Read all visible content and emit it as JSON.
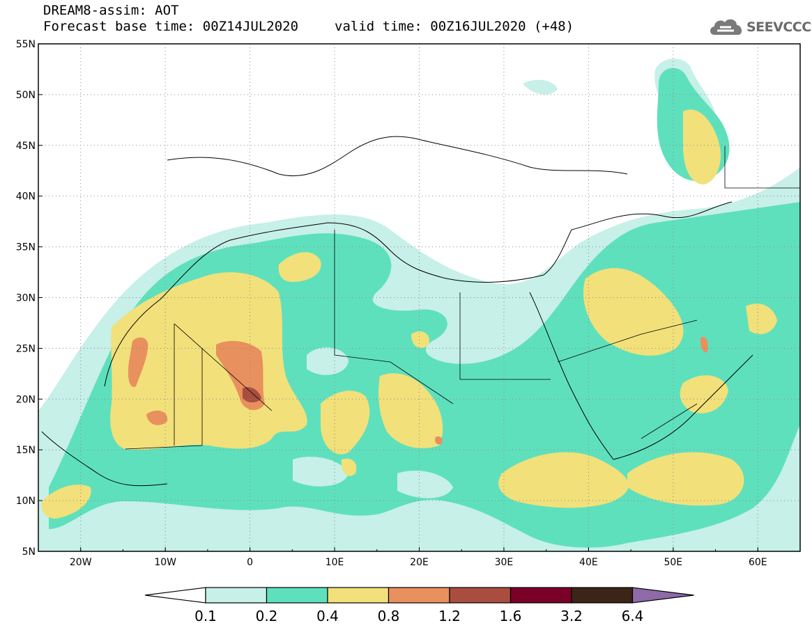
{
  "header": {
    "line1": "DREAM8-assim: AOT",
    "line2": "Forecast base time: 00Z14JUL2020",
    "line3": "valid time: 00Z16JUL2020 (+48)",
    "logo_text": "SEEVCCC",
    "logo_icon": "cloud-icon"
  },
  "map": {
    "lon_range": [
      -25,
      65
    ],
    "lat_range": [
      5,
      55
    ],
    "lon_labels": [
      "20W",
      "10W",
      "0",
      "10E",
      "20E",
      "30E",
      "40E",
      "50E",
      "60E"
    ],
    "lat_labels": [
      "55N",
      "50N",
      "45N",
      "40N",
      "35N",
      "30N",
      "25N",
      "20N",
      "15N",
      "10N",
      "5N"
    ]
  },
  "colorbar": {
    "labels": [
      "0.1",
      "0.2",
      "0.4",
      "0.8",
      "1.2",
      "1.6",
      "3.2",
      "6.4"
    ],
    "colors": [
      "#c6f0e8",
      "#5fe0bd",
      "#f2e07a",
      "#e8905e",
      "#a94e3e",
      "#7a0028",
      "#3c2417",
      "#8e6aa8"
    ]
  }
}
